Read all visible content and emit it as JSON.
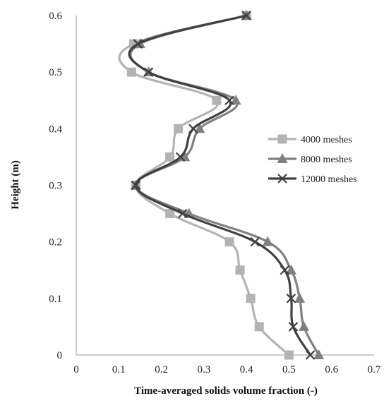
{
  "chart_data": {
    "type": "line",
    "xlabel": "Time-averaged solids volume fraction (-)",
    "ylabel": "Height (m)",
    "xlim": [
      0,
      0.7
    ],
    "ylim": [
      0,
      0.6
    ],
    "xticks": [
      "0",
      "0.1",
      "0.2",
      "0.3",
      "0.4",
      "0.5",
      "0.6",
      "0.7"
    ],
    "yticks": [
      "0",
      "0.1",
      "0.2",
      "0.3",
      "0.4",
      "0.5",
      "0.6"
    ],
    "grid": false,
    "legend_position": "right",
    "series": [
      {
        "name": "4000 meshes",
        "color": "#b3b3b3",
        "marker": "square",
        "points": [
          {
            "x": 0.5,
            "y": 0.0
          },
          {
            "x": 0.43,
            "y": 0.05
          },
          {
            "x": 0.41,
            "y": 0.1
          },
          {
            "x": 0.385,
            "y": 0.15
          },
          {
            "x": 0.36,
            "y": 0.2
          },
          {
            "x": 0.22,
            "y": 0.25
          },
          {
            "x": 0.14,
            "y": 0.3
          },
          {
            "x": 0.22,
            "y": 0.35
          },
          {
            "x": 0.24,
            "y": 0.4
          },
          {
            "x": 0.33,
            "y": 0.45
          },
          {
            "x": 0.13,
            "y": 0.5
          },
          {
            "x": 0.135,
            "y": 0.55
          },
          {
            "x": 0.4,
            "y": 0.6
          }
        ]
      },
      {
        "name": "8000 meshes",
        "color": "#808080",
        "marker": "triangle",
        "points": [
          {
            "x": 0.57,
            "y": 0.0
          },
          {
            "x": 0.535,
            "y": 0.05
          },
          {
            "x": 0.525,
            "y": 0.1
          },
          {
            "x": 0.505,
            "y": 0.15
          },
          {
            "x": 0.45,
            "y": 0.2
          },
          {
            "x": 0.265,
            "y": 0.25
          },
          {
            "x": 0.14,
            "y": 0.3
          },
          {
            "x": 0.255,
            "y": 0.35
          },
          {
            "x": 0.29,
            "y": 0.4
          },
          {
            "x": 0.375,
            "y": 0.45
          },
          {
            "x": 0.17,
            "y": 0.5
          },
          {
            "x": 0.15,
            "y": 0.55
          },
          {
            "x": 0.4,
            "y": 0.6
          }
        ]
      },
      {
        "name": "12000 meshes",
        "color": "#404040",
        "marker": "cross",
        "points": [
          {
            "x": 0.55,
            "y": 0.0
          },
          {
            "x": 0.51,
            "y": 0.05
          },
          {
            "x": 0.505,
            "y": 0.1
          },
          {
            "x": 0.49,
            "y": 0.15
          },
          {
            "x": 0.42,
            "y": 0.2
          },
          {
            "x": 0.25,
            "y": 0.25
          },
          {
            "x": 0.14,
            "y": 0.3
          },
          {
            "x": 0.245,
            "y": 0.35
          },
          {
            "x": 0.275,
            "y": 0.4
          },
          {
            "x": 0.36,
            "y": 0.45
          },
          {
            "x": 0.17,
            "y": 0.5
          },
          {
            "x": 0.145,
            "y": 0.55
          },
          {
            "x": 0.4,
            "y": 0.6
          }
        ]
      }
    ]
  }
}
